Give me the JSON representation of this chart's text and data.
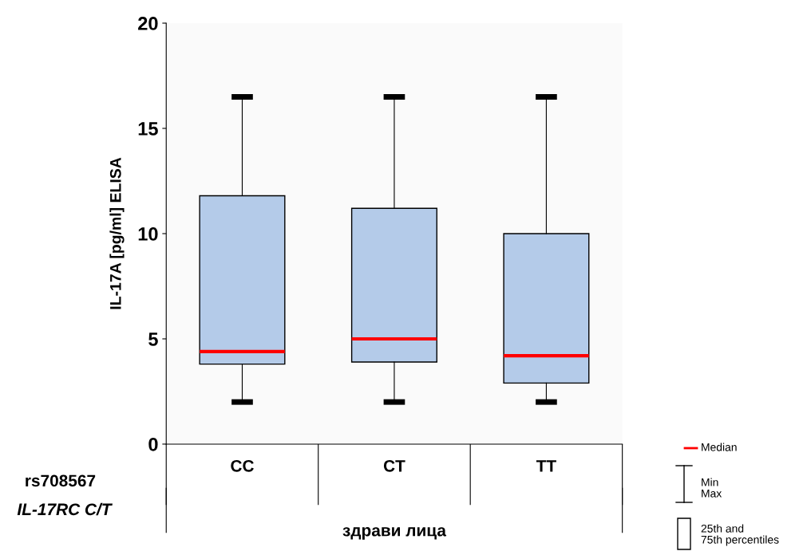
{
  "chart_data": {
    "type": "box",
    "ylabel": "IL-17A [pg/ml] ELISA",
    "xlabel": "здрави лица",
    "categories": [
      "CC",
      "CT",
      "TT"
    ],
    "boxes": [
      {
        "low": 2,
        "q1": 3.8,
        "median": 4.4,
        "q3": 11.8,
        "high": 16.5
      },
      {
        "low": 2,
        "q1": 3.9,
        "median": 5.0,
        "q3": 11.2,
        "high": 16.5
      },
      {
        "low": 2,
        "q1": 2.9,
        "median": 4.2,
        "q3": 10.0,
        "high": 16.5
      }
    ],
    "color": "#b4cbe9",
    "ylim": [
      0,
      20
    ],
    "yticks": [
      0,
      5,
      10,
      15,
      20
    ],
    "grid": false,
    "annotations": [
      "rs708567",
      "IL-17RC C/T",
      "Median",
      "Min\nMax",
      "25th and\n75th percentiles"
    ]
  }
}
